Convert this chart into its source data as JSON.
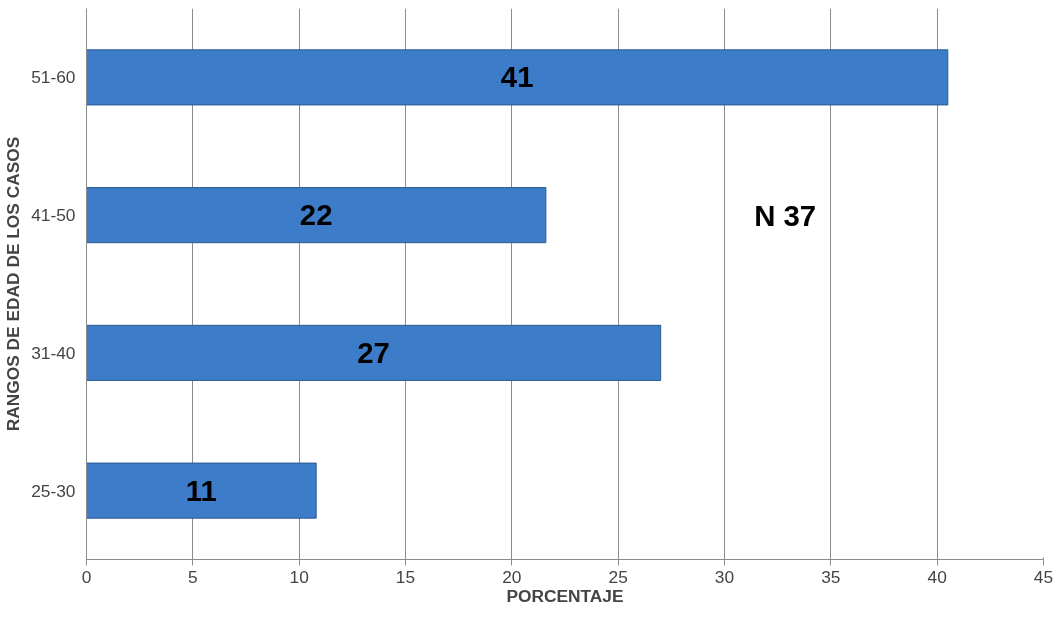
{
  "chart_data": {
    "type": "bar",
    "orientation": "horizontal",
    "xlabel": "PORCENTAJE",
    "ylabel": "RANGOS DE EDAD DE LOS CASOS",
    "categories": [
      "51-60",
      "41-50",
      "31-40",
      "25-30"
    ],
    "values": [
      40.5,
      21.6,
      27.0,
      10.8
    ],
    "value_labels": [
      "41",
      "22",
      "27",
      "11"
    ],
    "color": "#3d7cc9",
    "xlim": [
      0,
      45
    ],
    "xticks": [
      0,
      5,
      10,
      15,
      20,
      25,
      30,
      35,
      40,
      45
    ],
    "grid": "x",
    "annotations": [
      "N 37"
    ]
  }
}
